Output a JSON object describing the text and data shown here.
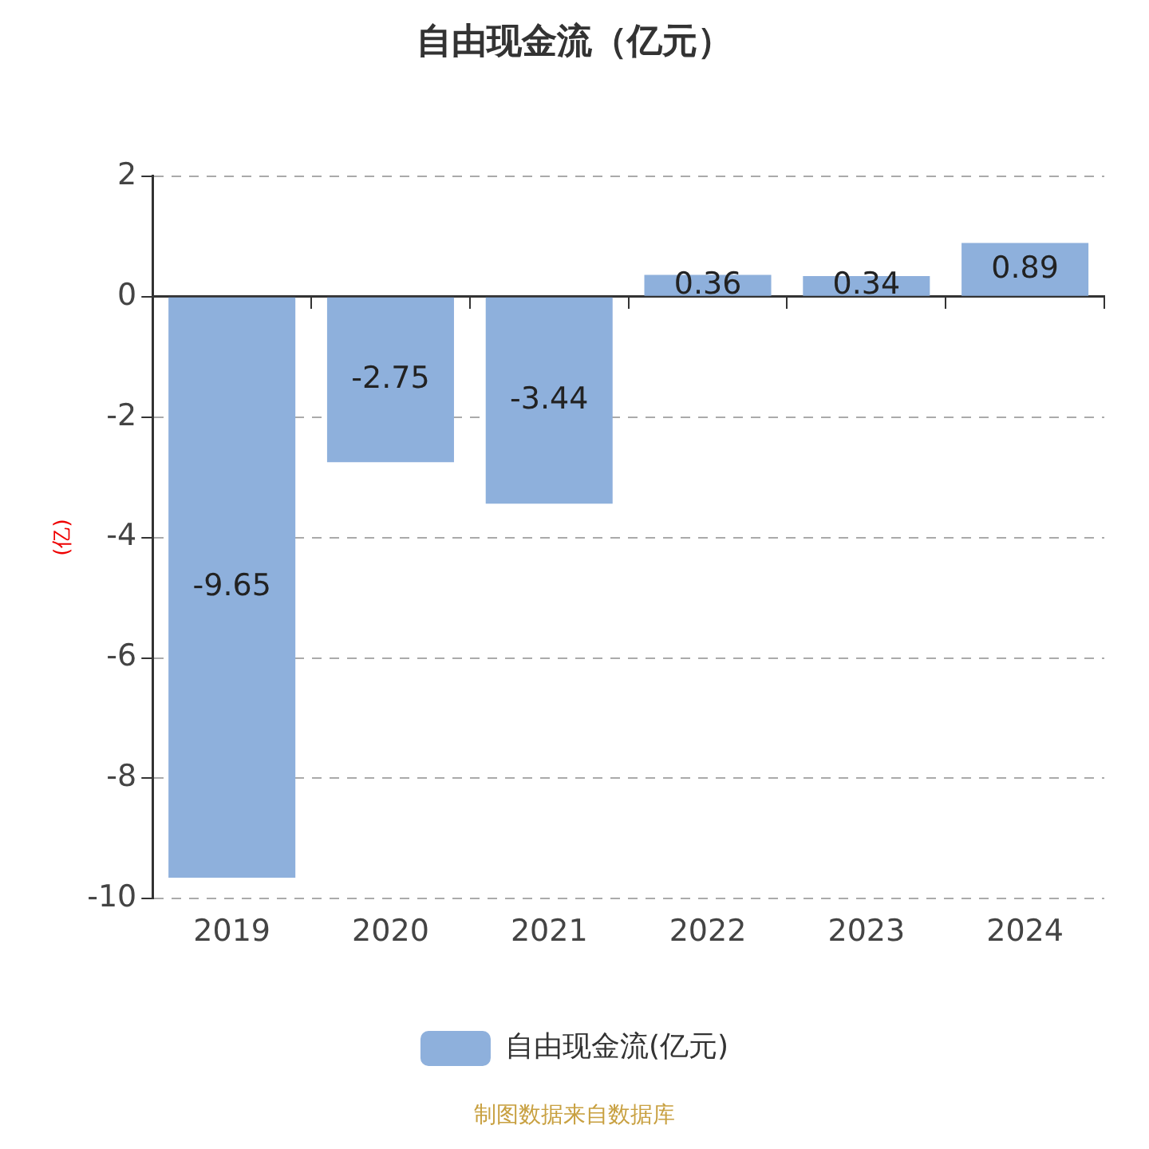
{
  "chart_data": {
    "type": "bar",
    "title": "自由现金流（亿元）",
    "ylabel": "(亿)",
    "categories": [
      "2019",
      "2020",
      "2021",
      "2022",
      "2023",
      "2024"
    ],
    "series": [
      {
        "name": "自由现金流(亿元)",
        "color": "#8eb0dc",
        "values": [
          -9.65,
          -2.75,
          -3.44,
          0.36,
          0.34,
          0.89
        ]
      }
    ],
    "ylim": [
      -10,
      2
    ],
    "yticks": [
      -10,
      -8,
      -6,
      -4,
      -2,
      0,
      2
    ],
    "grid": "y",
    "data_labels": true,
    "legend": "bottom",
    "annotations": [
      "制图数据来自数据库"
    ]
  }
}
